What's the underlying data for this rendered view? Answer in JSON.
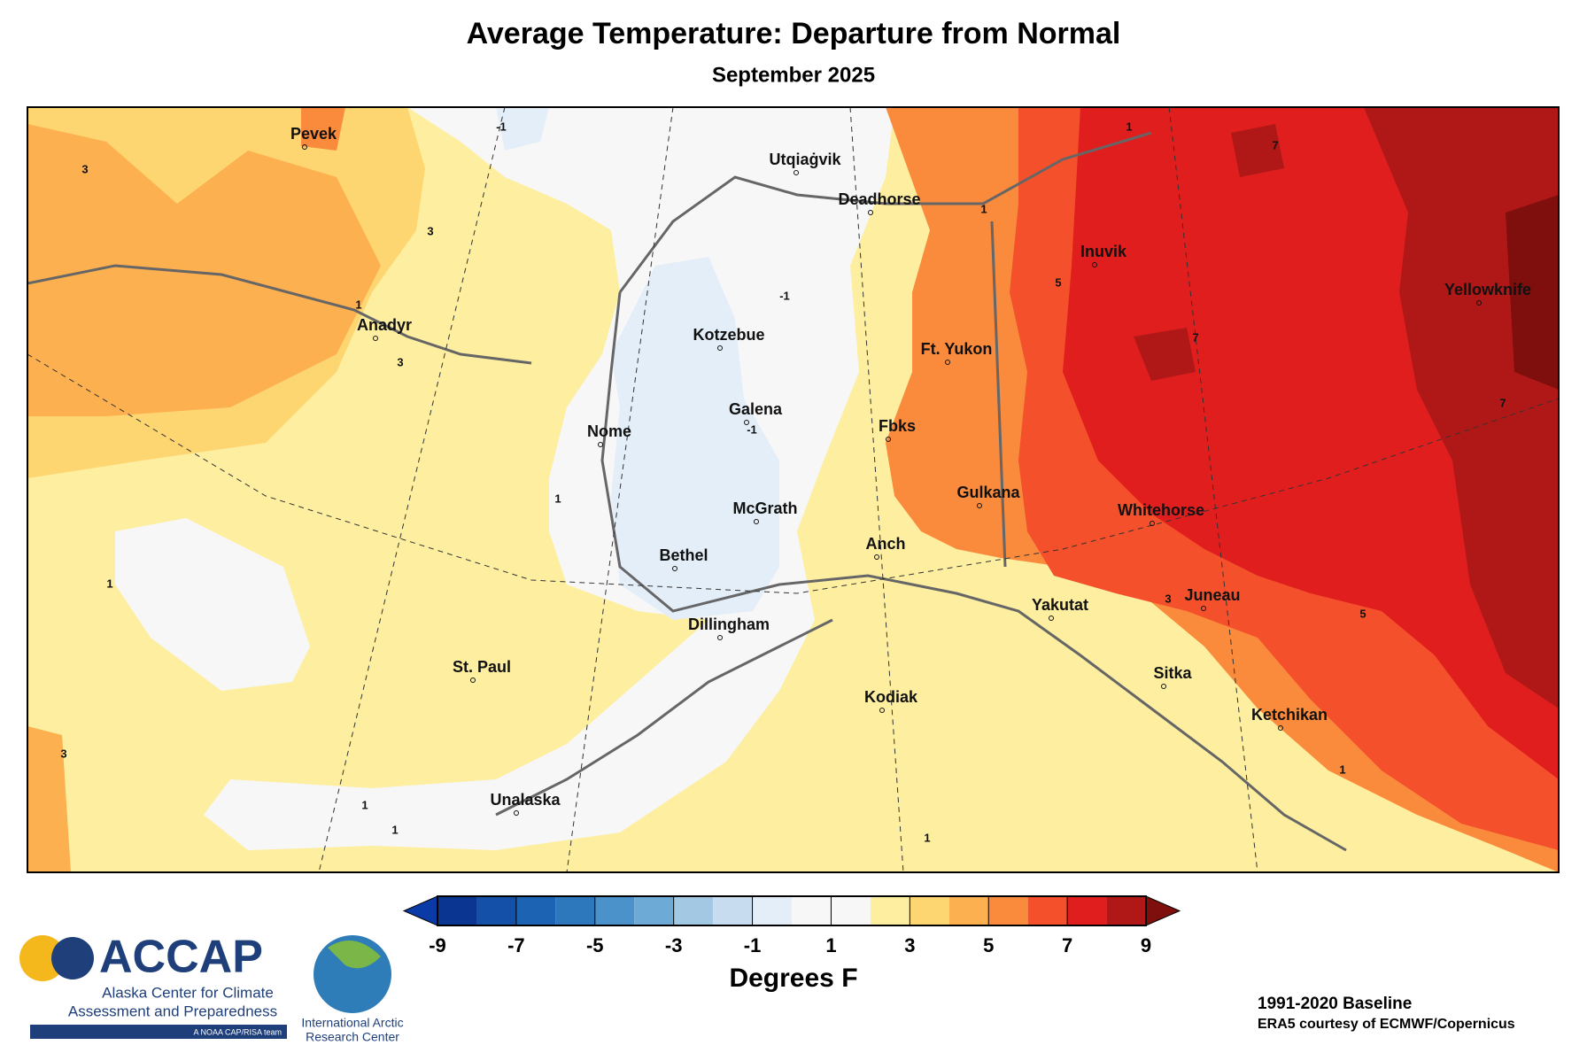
{
  "header": {
    "title": "Average Temperature: Departure from Normal",
    "subtitle": "September 2025"
  },
  "map": {
    "places": [
      "Pevek",
      "Utqiaġvik",
      "Deadhorse",
      "Inuvik",
      "Yellowknife",
      "Anadyr",
      "Kotzebue",
      "Ft. Yukon",
      "Galena",
      "Nome",
      "Fbks",
      "McGrath",
      "Gulkana",
      "Whitehorse",
      "Bethel",
      "Anch",
      "Yakutat",
      "Juneau",
      "Dillingham",
      "St. Paul",
      "Sitka",
      "Kodiak",
      "Ketchikan",
      "Unalaska"
    ],
    "contour_labels": [
      3,
      3,
      1,
      3,
      -1,
      1,
      1,
      -1,
      -1,
      1,
      5,
      7,
      7,
      7,
      3,
      5,
      1,
      1,
      1,
      1,
      3,
      1
    ]
  },
  "colorbar": {
    "bounds": [
      -9,
      -8,
      -7,
      -6,
      -5,
      -4,
      -3,
      -2,
      -1,
      0,
      1,
      2,
      3,
      4,
      5,
      6,
      7,
      8,
      9
    ],
    "colors": [
      "#0a3590",
      "#1450a8",
      "#1d63b3",
      "#2d78bd",
      "#4a92c9",
      "#6eaad6",
      "#a2c8e4",
      "#c8dcef",
      "#e4eef8",
      "#f7f7f7",
      "#f7f7f7",
      "#fdeea0",
      "#fdd672",
      "#fcb050",
      "#fa8a3c",
      "#f4502c",
      "#e01e1e",
      "#b01818",
      "#7e0f0c"
    ],
    "under_color": "#0a3aa5",
    "over_color": "#7e0f0c",
    "ticks": [
      -9,
      -7,
      -5,
      -3,
      -1,
      1,
      3,
      5,
      7,
      9
    ],
    "label": "Degrees F"
  },
  "logos": {
    "accap": "ACCAP",
    "accap_line1": "Alaska Center for Climate",
    "accap_line2": "Assessment and Preparedness",
    "accap_tag": "A NOAA CAP/RISA team",
    "iarc_line1": "International Arctic",
    "iarc_line2": "Research Center"
  },
  "credits": {
    "baseline": "1991-2020 Baseline",
    "source": "ERA5 courtesy of ECMWF/Copernicus"
  }
}
